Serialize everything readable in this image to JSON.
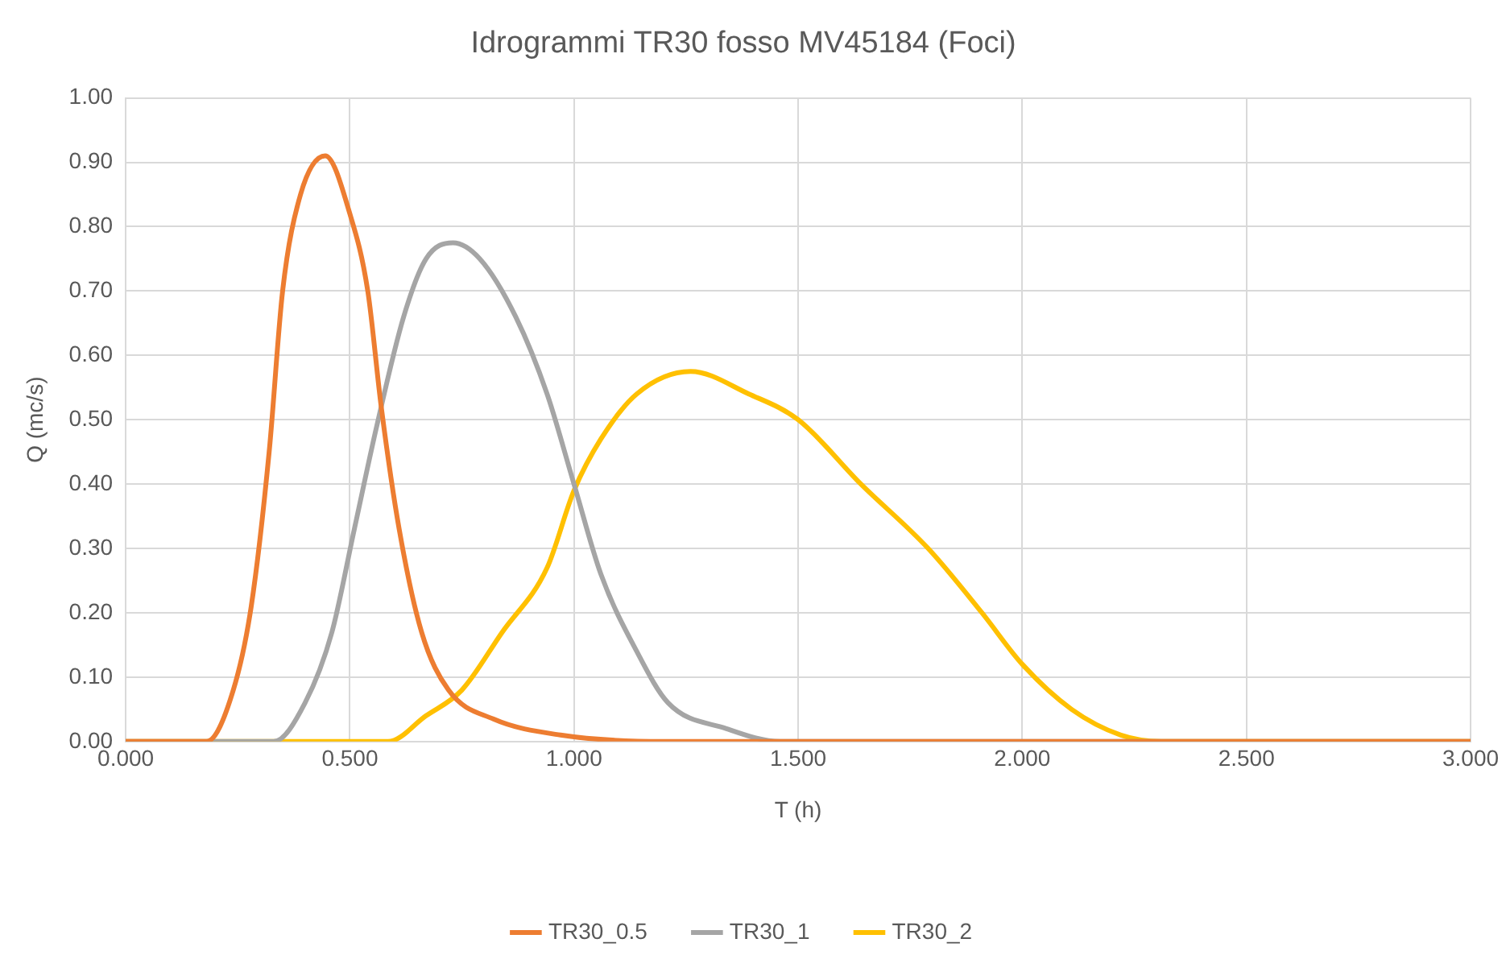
{
  "chart_data": {
    "type": "line",
    "title": "Idrogrammi TR30 fosso MV45184 (Foci)",
    "xlabel": "T (h)",
    "ylabel": "Q (mc/s)",
    "xlim": [
      0,
      3
    ],
    "ylim": [
      0,
      1
    ],
    "xticks": [
      {
        "value": 0,
        "label": "0.000"
      },
      {
        "value": 0.5,
        "label": "0.500"
      },
      {
        "value": 1,
        "label": "1.000"
      },
      {
        "value": 1.5,
        "label": "1.500"
      },
      {
        "value": 2,
        "label": "2.000"
      },
      {
        "value": 2.5,
        "label": "2.500"
      },
      {
        "value": 3,
        "label": "3.000"
      }
    ],
    "yticks": [
      {
        "value": 0,
        "label": "0.00"
      },
      {
        "value": 0.1,
        "label": "0.10"
      },
      {
        "value": 0.2,
        "label": "0.20"
      },
      {
        "value": 0.3,
        "label": "0.30"
      },
      {
        "value": 0.4,
        "label": "0.40"
      },
      {
        "value": 0.5,
        "label": "0.50"
      },
      {
        "value": 0.6,
        "label": "0.60"
      },
      {
        "value": 0.7,
        "label": "0.70"
      },
      {
        "value": 0.8,
        "label": "0.80"
      },
      {
        "value": 0.9,
        "label": "0.90"
      },
      {
        "value": 1,
        "label": "1.00"
      }
    ],
    "grid": true,
    "legend": "bottom",
    "marker": "none",
    "line_style": "solid",
    "series": [
      {
        "name": "TR30_0.5",
        "color": "#ed7d31",
        "x": [
          0,
          0.18,
          0.24,
          0.28,
          0.32,
          0.35,
          0.39,
          0.445,
          0.5,
          0.54,
          0.57,
          0.61,
          0.66,
          0.72,
          0.82,
          0.97,
          1.2,
          3
        ],
        "values": [
          0,
          0,
          0.08,
          0.21,
          0.45,
          0.7,
          0.85,
          0.91,
          0.82,
          0.7,
          0.52,
          0.33,
          0.17,
          0.08,
          0.035,
          0.01,
          0,
          0
        ]
      },
      {
        "name": "TR30_1",
        "color": "#a5a5a5",
        "x": [
          0,
          0.33,
          0.4,
          0.46,
          0.51,
          0.56,
          0.62,
          0.67,
          0.73,
          0.79,
          0.87,
          0.94,
          1,
          1.06,
          1.14,
          1.21,
          1.34,
          1.46,
          3
        ],
        "values": [
          0,
          0,
          0.06,
          0.17,
          0.33,
          0.49,
          0.66,
          0.75,
          0.775,
          0.75,
          0.66,
          0.54,
          0.4,
          0.26,
          0.14,
          0.06,
          0.02,
          0,
          0
        ]
      },
      {
        "name": "TR30_2",
        "color": "#ffc000",
        "x": [
          0,
          0.585,
          0.67,
          0.75,
          0.84,
          0.94,
          1,
          1.06,
          1.14,
          1.26,
          1.39,
          1.5,
          1.64,
          1.79,
          1.91,
          2,
          2.11,
          2.22,
          2.31,
          3
        ],
        "values": [
          0,
          0,
          0.04,
          0.08,
          0.17,
          0.27,
          0.39,
          0.47,
          0.54,
          0.575,
          0.54,
          0.5,
          0.4,
          0.3,
          0.2,
          0.12,
          0.05,
          0.01,
          0,
          0
        ]
      }
    ]
  }
}
